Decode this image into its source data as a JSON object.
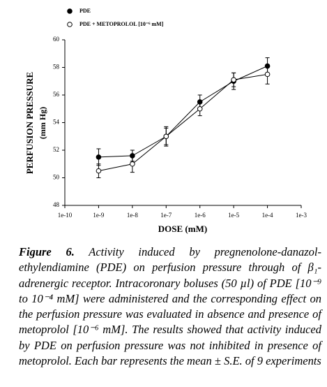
{
  "chart_data": {
    "type": "line",
    "xlabel": "DOSE (mM)",
    "ylabel": [
      "PERFUSION PRESSURE",
      "(mm Hg)"
    ],
    "xscale": "log",
    "x": [
      1e-09,
      1e-08,
      1e-07,
      1e-06,
      1e-05,
      0.0001
    ],
    "series": [
      {
        "name": "PDE",
        "color": "#000000",
        "marker": "filled",
        "values": [
          51.5,
          51.6,
          53.0,
          55.5,
          57.0,
          58.1
        ],
        "errors": [
          0.6,
          0.4,
          0.7,
          0.5,
          0.6,
          0.6
        ]
      },
      {
        "name": "PDE + METOPROLOL [10⁻⁶ mM]",
        "color": "#000000",
        "marker": "open",
        "values": [
          50.5,
          51.0,
          53.0,
          55.0,
          57.1,
          57.5
        ],
        "errors": [
          0.5,
          0.6,
          0.6,
          0.5,
          0.5,
          0.7
        ]
      }
    ],
    "xlim": [
      1e-10,
      0.001
    ],
    "xticks": [
      {
        "value": 1e-10,
        "label": "1e-10"
      },
      {
        "value": 1e-09,
        "label": "1e-9"
      },
      {
        "value": 1e-08,
        "label": "1e-8"
      },
      {
        "value": 1e-07,
        "label": "1e-7"
      },
      {
        "value": 1e-06,
        "label": "1e-6"
      },
      {
        "value": 1e-05,
        "label": "1e-5"
      },
      {
        "value": 0.0001,
        "label": "1e-4"
      },
      {
        "value": 0.001,
        "label": "1e-3"
      }
    ],
    "ylim": [
      48,
      60
    ],
    "yticks": [
      48,
      50,
      52,
      54,
      56,
      58,
      60
    ],
    "legend": "top-left"
  },
  "caption": {
    "label": "Figure 6.",
    "text": "Activity induced by pregnenolone-danazol-ethylendiamine (PDE) on perfusion pressure through of β₁- adrenergic receptor. Intracoronary boluses (50 µl) of PDE [10⁻⁹ to 10⁻⁴ mM] were administered and the corresponding effect on the perfusion pressure was evaluated in absence and presence of metoprolol [10⁻⁶ mM]. The results showed that activity induced by PDE on perfusion pressure was not inhibited in presence of metoprolol. Each bar represents the mean ± S.E. of 9 experiments"
  }
}
